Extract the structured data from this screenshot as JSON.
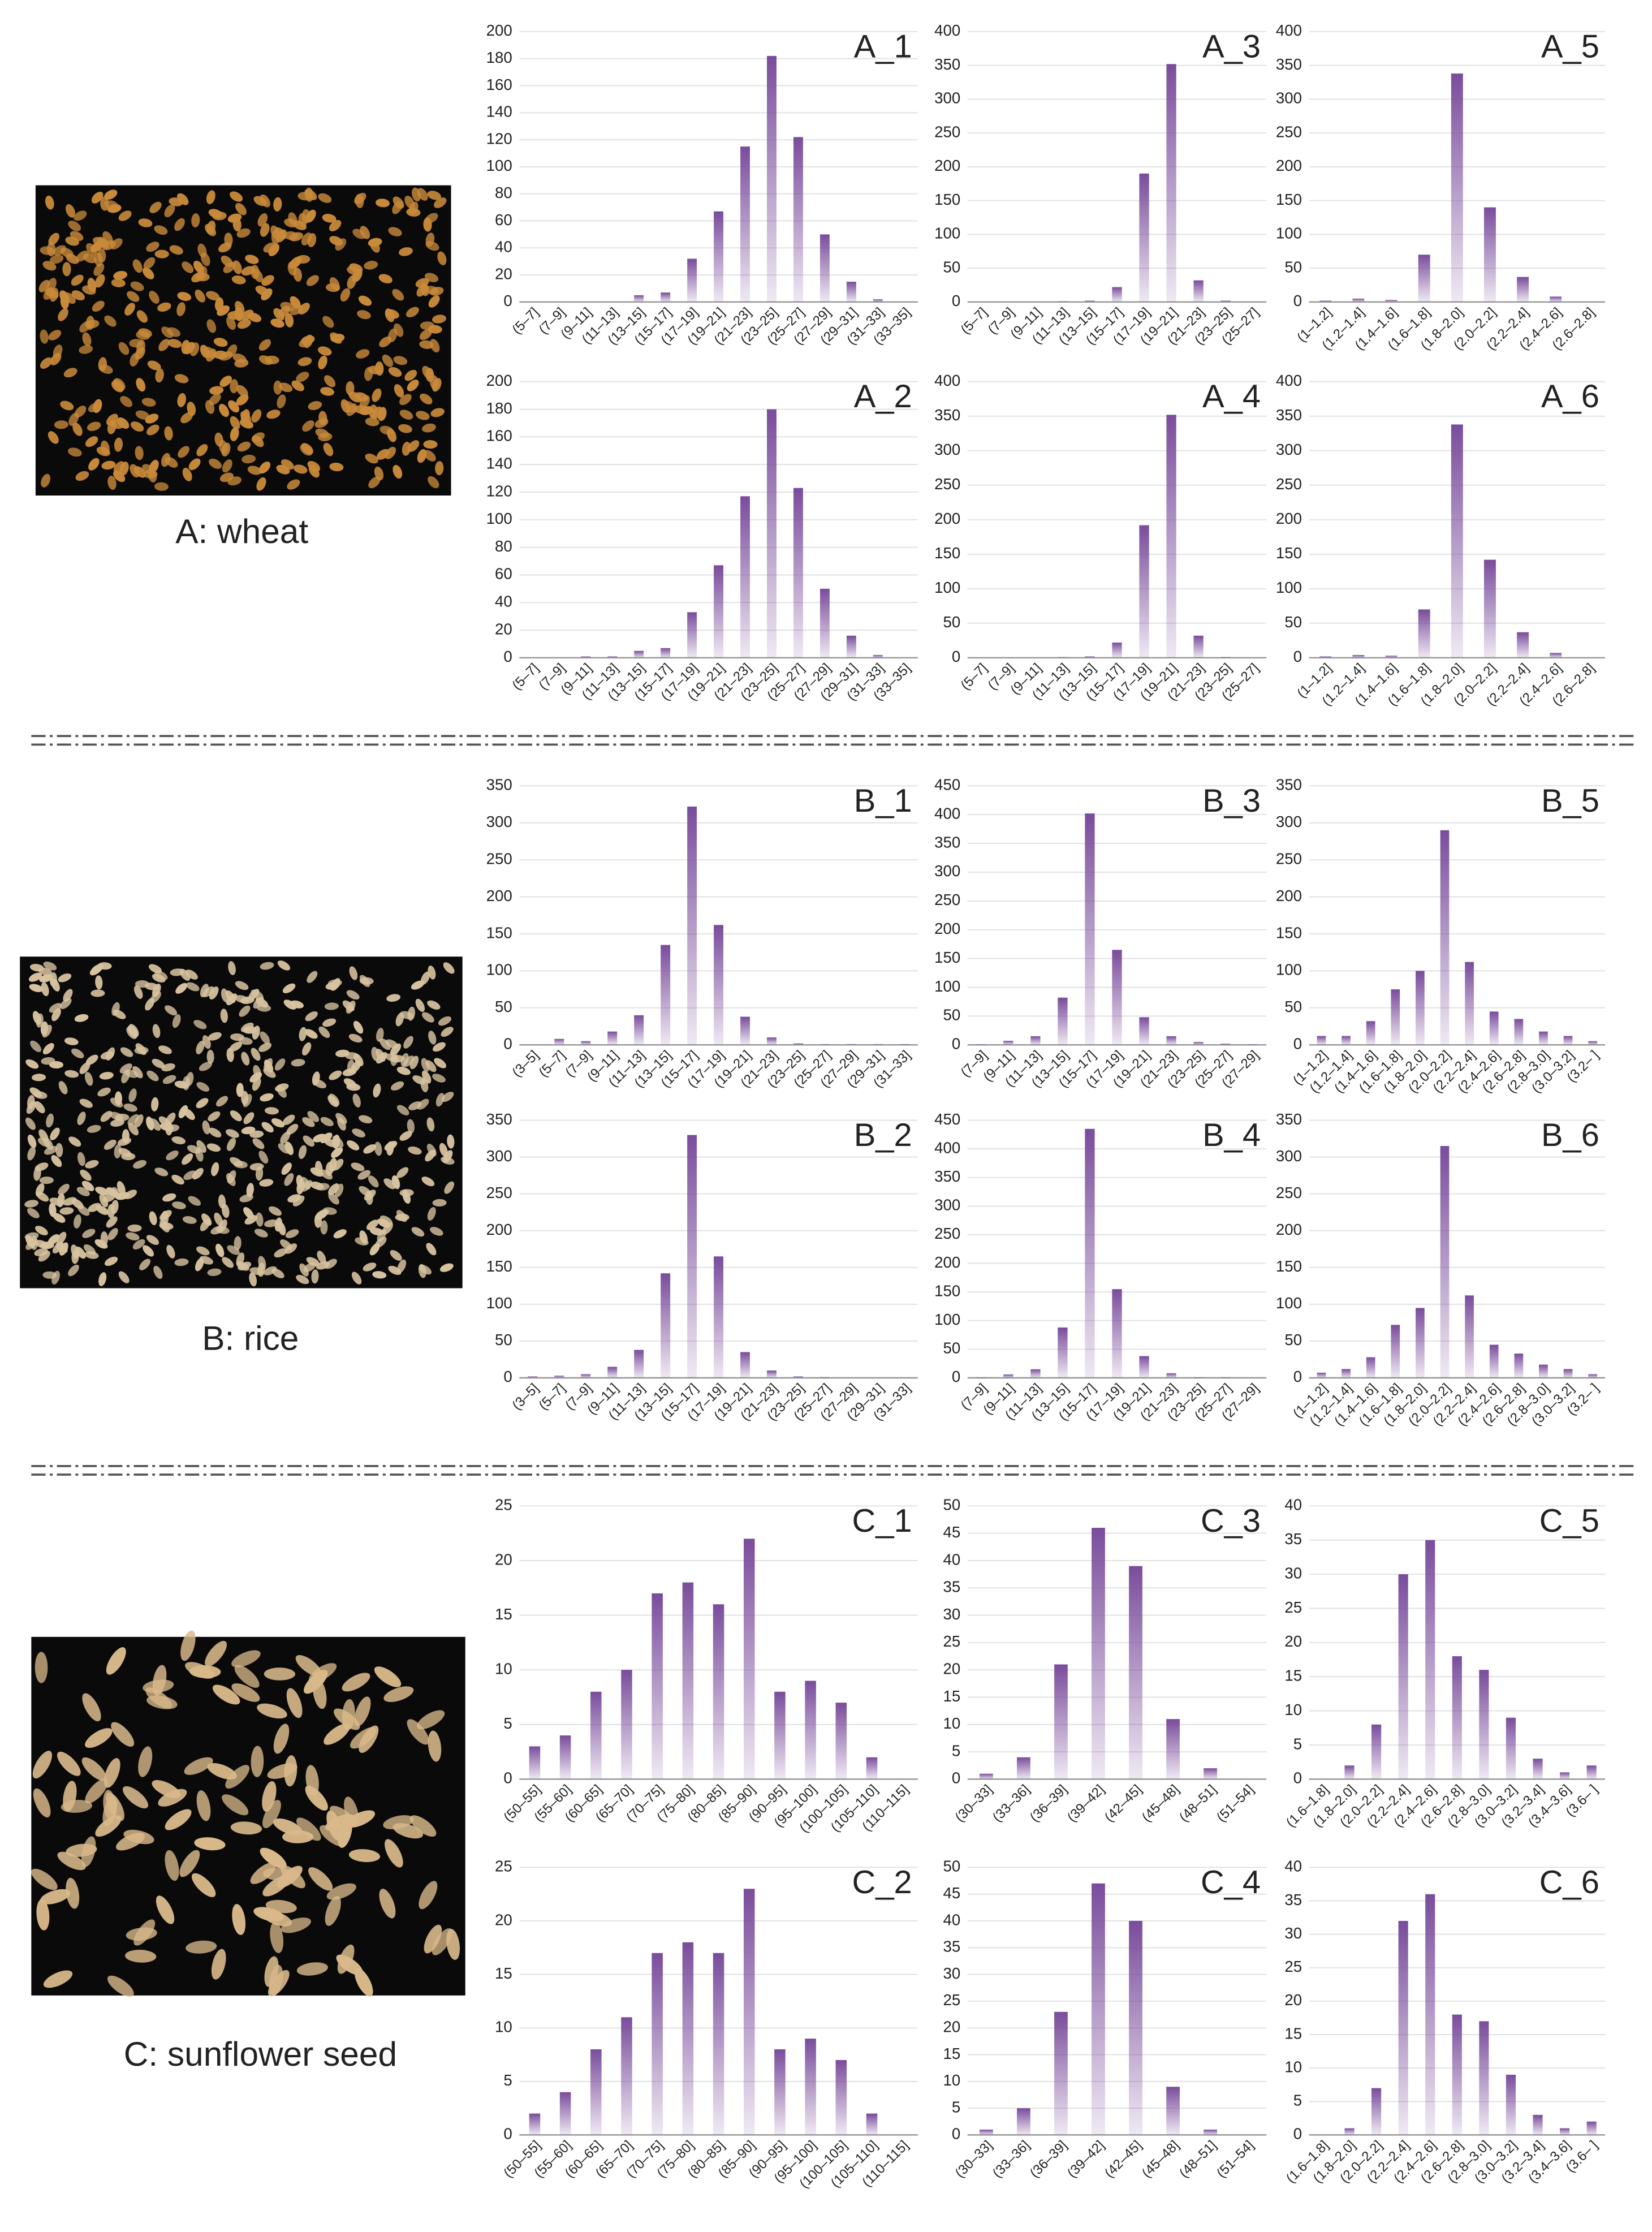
{
  "captions": [
    "A: wheat",
    "B: rice",
    "C: sunflower seed"
  ],
  "chart_data": [
    {
      "type": "bar",
      "title": "A_1",
      "color": "#7a4c9c",
      "grid": true,
      "categories": [
        "(5–7]",
        "(7–9]",
        "(9–11]",
        "(11–13]",
        "(13–15]",
        "(15–17]",
        "(17–19]",
        "(19–21]",
        "(21–23]",
        "(23–25]",
        "(25–27]",
        "(27–29]",
        "(29–31]",
        "(31–33]",
        "(33–35]"
      ],
      "values": [
        0,
        0,
        0,
        0,
        5,
        7,
        32,
        67,
        115,
        182,
        122,
        50,
        15,
        2,
        0
      ],
      "ylim": [
        0,
        200
      ],
      "yticks": [
        0,
        20,
        40,
        60,
        80,
        100,
        120,
        140,
        160,
        180,
        200
      ]
    },
    {
      "type": "bar",
      "title": "A_2",
      "color": "#7a4c9c",
      "grid": true,
      "categories": [
        "(5–7]",
        "(7–9]",
        "(9–11]",
        "(11–13]",
        "(13–15]",
        "(15–17]",
        "(17–19]",
        "(19–21]",
        "(21–23]",
        "(23–25]",
        "(25–27]",
        "(27–29]",
        "(29–31]",
        "(31–33]",
        "(33–35]"
      ],
      "values": [
        0,
        0,
        1,
        1,
        5,
        7,
        33,
        67,
        117,
        180,
        123,
        50,
        16,
        2,
        0
      ],
      "ylim": [
        0,
        200
      ],
      "yticks": [
        0,
        20,
        40,
        60,
        80,
        100,
        120,
        140,
        160,
        180,
        200
      ]
    },
    {
      "type": "bar",
      "title": "A_3",
      "color": "#7a4c9c",
      "grid": true,
      "categories": [
        "(5–7]",
        "(7–9]",
        "(9–11]",
        "(11–13]",
        "(13–15]",
        "(15–17]",
        "(17–19]",
        "(19–21]",
        "(21–23]",
        "(23–25]",
        "(25–27]"
      ],
      "values": [
        0,
        0,
        0,
        1,
        2,
        22,
        190,
        352,
        32,
        2,
        0
      ],
      "ylim": [
        0,
        400
      ],
      "yticks": [
        0,
        50,
        100,
        150,
        200,
        250,
        300,
        350,
        400
      ]
    },
    {
      "type": "bar",
      "title": "A_4",
      "color": "#7a4c9c",
      "grid": true,
      "categories": [
        "(5–7]",
        "(7–9]",
        "(9–11]",
        "(11–13]",
        "(13–15]",
        "(15–17]",
        "(17–19]",
        "(19–21]",
        "(21–23]",
        "(23–25]",
        "(25–27]"
      ],
      "values": [
        0,
        0,
        0,
        1,
        2,
        22,
        192,
        352,
        32,
        1,
        0
      ],
      "ylim": [
        0,
        400
      ],
      "yticks": [
        0,
        50,
        100,
        150,
        200,
        250,
        300,
        350,
        400
      ]
    },
    {
      "type": "bar",
      "title": "A_5",
      "color": "#7a4c9c",
      "grid": true,
      "categories": [
        "(1–1.2]",
        "(1.2–1.4]",
        "(1.4–1.6]",
        "(1.6–1.8]",
        "(1.8–2.0]",
        "(2.0–2.2]",
        "(2.2–2.4]",
        "(2.4–2.6]",
        "(2.6–2.8]"
      ],
      "values": [
        2,
        5,
        3,
        70,
        338,
        140,
        37,
        8,
        0
      ],
      "ylim": [
        0,
        400
      ],
      "yticks": [
        0,
        50,
        100,
        150,
        200,
        250,
        300,
        350,
        400
      ]
    },
    {
      "type": "bar",
      "title": "A_6",
      "color": "#7a4c9c",
      "grid": true,
      "categories": [
        "(1–1.2]",
        "(1.2–1.4]",
        "(1.4–1.6]",
        "(1.6–1.8]",
        "(1.8–2.0]",
        "(2.0–2.2]",
        "(2.2–2.4]",
        "(2.4–2.6]",
        "(2.6–2.8]"
      ],
      "values": [
        2,
        4,
        3,
        70,
        338,
        142,
        37,
        7,
        0
      ],
      "ylim": [
        0,
        400
      ],
      "yticks": [
        0,
        50,
        100,
        150,
        200,
        250,
        300,
        350,
        400
      ]
    },
    {
      "type": "bar",
      "title": "B_1",
      "color": "#7a4c9c",
      "grid": true,
      "categories": [
        "(3–5]",
        "(5–7]",
        "(7–9]",
        "(9–11]",
        "(11–13]",
        "(13–15]",
        "(15–17]",
        "(17–19]",
        "(19–21]",
        "(21–23]",
        "(23–25]",
        "(25–27]",
        "(27–29]",
        "(29–31]",
        "(31–33]"
      ],
      "values": [
        0,
        8,
        5,
        18,
        40,
        135,
        322,
        162,
        38,
        10,
        2,
        1,
        1,
        1,
        1
      ],
      "ylim": [
        0,
        350
      ],
      "yticks": [
        0,
        50,
        100,
        150,
        200,
        250,
        300,
        350
      ]
    },
    {
      "type": "bar",
      "title": "B_2",
      "color": "#7a4c9c",
      "grid": true,
      "categories": [
        "(3–5]",
        "(5–7]",
        "(7–9]",
        "(9–11]",
        "(11–13]",
        "(13–15]",
        "(15–17]",
        "(17–19]",
        "(19–21]",
        "(21–23]",
        "(23–25]",
        "(25–27]",
        "(27–29]",
        "(29–31]",
        "(31–33]"
      ],
      "values": [
        2,
        3,
        5,
        15,
        38,
        142,
        330,
        165,
        35,
        10,
        2,
        1,
        0,
        0,
        0
      ],
      "ylim": [
        0,
        350
      ],
      "yticks": [
        0,
        50,
        100,
        150,
        200,
        250,
        300,
        350
      ]
    },
    {
      "type": "bar",
      "title": "B_3",
      "color": "#7a4c9c",
      "grid": true,
      "categories": [
        "(7–9]",
        "(9–11]",
        "(11–13]",
        "(13–15]",
        "(15–17]",
        "(17–19]",
        "(19–21]",
        "(21–23]",
        "(23–25]",
        "(25–27]",
        "(27–29]"
      ],
      "values": [
        1,
        7,
        15,
        82,
        402,
        165,
        48,
        15,
        5,
        2,
        1
      ],
      "ylim": [
        0,
        450
      ],
      "yticks": [
        0,
        50,
        100,
        150,
        200,
        250,
        300,
        350,
        400,
        450
      ]
    },
    {
      "type": "bar",
      "title": "B_4",
      "color": "#7a4c9c",
      "grid": true,
      "categories": [
        "(7–9]",
        "(9–11]",
        "(11–13]",
        "(13–15]",
        "(15–17]",
        "(17–19]",
        "(19–21]",
        "(21–23]",
        "(23–25]",
        "(25–27]",
        "(27–29]"
      ],
      "values": [
        1,
        6,
        15,
        88,
        435,
        155,
        38,
        8,
        1,
        1,
        0
      ],
      "ylim": [
        0,
        450
      ],
      "yticks": [
        0,
        50,
        100,
        150,
        200,
        250,
        300,
        350,
        400,
        450
      ]
    },
    {
      "type": "bar",
      "title": "B_5",
      "color": "#7a4c9c",
      "grid": true,
      "categories": [
        "(1–1.2]",
        "(1.2–1.4]",
        "(1.4–1.6]",
        "(1.6–1.8]",
        "(1.8–2.0]",
        "(2.0–2.2]",
        "(2.2–2.4]",
        "(2.4–2.6]",
        "(2.6–2.8]",
        "(2.8–3.0]",
        "(3.0–3.2]",
        "(3.2– ]"
      ],
      "values": [
        12,
        12,
        32,
        75,
        100,
        290,
        112,
        45,
        35,
        18,
        12,
        5
      ],
      "ylim": [
        0,
        350
      ],
      "yticks": [
        0,
        50,
        100,
        150,
        200,
        250,
        300,
        350
      ]
    },
    {
      "type": "bar",
      "title": "B_6",
      "color": "#7a4c9c",
      "grid": true,
      "categories": [
        "(1–1.2]",
        "(1.2–1.4]",
        "(1.4–1.6]",
        "(1.6–1.8]",
        "(1.8–2.0]",
        "(2.0–2.2]",
        "(2.2–2.4]",
        "(2.4–2.6]",
        "(2.6–2.8]",
        "(2.8–3.0]",
        "(3.0–3.2]",
        "(3.2– ]"
      ],
      "values": [
        7,
        12,
        28,
        72,
        95,
        315,
        112,
        45,
        33,
        18,
        12,
        5
      ],
      "ylim": [
        0,
        350
      ],
      "yticks": [
        0,
        50,
        100,
        150,
        200,
        250,
        300,
        350
      ]
    },
    {
      "type": "bar",
      "title": "C_1",
      "color": "#7a4c9c",
      "grid": true,
      "categories": [
        "(50–55]",
        "(55–60]",
        "(60–65]",
        "(65–70]",
        "(70–75]",
        "(75–80]",
        "(80–85]",
        "(85–90]",
        "(90–95]",
        "(95–100]",
        "(100–105]",
        "(105–110]",
        "(110–115]"
      ],
      "values": [
        3,
        4,
        8,
        10,
        17,
        18,
        16,
        22,
        8,
        9,
        7,
        2,
        0
      ],
      "ylim": [
        0,
        25
      ],
      "yticks": [
        0,
        5,
        10,
        15,
        20,
        25
      ]
    },
    {
      "type": "bar",
      "title": "C_2",
      "color": "#7a4c9c",
      "grid": true,
      "categories": [
        "(50–55]",
        "(55–60]",
        "(60–65]",
        "(65–70]",
        "(70–75]",
        "(75–80]",
        "(80–85]",
        "(85–90]",
        "(90–95]",
        "(95–100]",
        "(100–105]",
        "(105–110]",
        "(110–115]"
      ],
      "values": [
        2,
        4,
        8,
        11,
        17,
        18,
        17,
        23,
        8,
        9,
        7,
        2,
        0
      ],
      "ylim": [
        0,
        25
      ],
      "yticks": [
        0,
        5,
        10,
        15,
        20,
        25
      ]
    },
    {
      "type": "bar",
      "title": "C_3",
      "color": "#7a4c9c",
      "grid": true,
      "categories": [
        "(30–33]",
        "(33–36]",
        "(36–39]",
        "(39–42]",
        "(42–45]",
        "(45–48]",
        "(48–51]",
        "(51–54]"
      ],
      "values": [
        1,
        4,
        21,
        46,
        39,
        11,
        2,
        0
      ],
      "ylim": [
        0,
        50
      ],
      "yticks": [
        0,
        5,
        10,
        15,
        20,
        25,
        30,
        35,
        40,
        45,
        50
      ]
    },
    {
      "type": "bar",
      "title": "C_4",
      "color": "#7a4c9c",
      "grid": true,
      "categories": [
        "(30–33]",
        "(33–36]",
        "(36–39]",
        "(39–42]",
        "(42–45]",
        "(45–48]",
        "(48–51]",
        "(51–54]"
      ],
      "values": [
        1,
        5,
        23,
        47,
        40,
        9,
        1,
        0
      ],
      "ylim": [
        0,
        50
      ],
      "yticks": [
        0,
        5,
        10,
        15,
        20,
        25,
        30,
        35,
        40,
        45,
        50
      ]
    },
    {
      "type": "bar",
      "title": "C_5",
      "color": "#7a4c9c",
      "grid": true,
      "categories": [
        "(1.6–1.8]",
        "(1.8–2.0]",
        "(2.0–2.2]",
        "(2.2–2.4]",
        "(2.4–2.6]",
        "(2.6–2.8]",
        "(2.8–3.0]",
        "(3.0–3.2]",
        "(3.2–3.4]",
        "(3.4–3.6]",
        "(3.6– ]"
      ],
      "values": [
        0,
        2,
        8,
        30,
        35,
        18,
        16,
        9,
        3,
        1,
        2
      ],
      "ylim": [
        0,
        40
      ],
      "yticks": [
        0,
        5,
        10,
        15,
        20,
        25,
        30,
        35,
        40
      ]
    },
    {
      "type": "bar",
      "title": "C_6",
      "color": "#7a4c9c",
      "grid": true,
      "categories": [
        "(1.6–1.8]",
        "(1.8–2.0]",
        "(2.0–2.2]",
        "(2.2–2.4]",
        "(2.4–2.6]",
        "(2.6–2.8]",
        "(2.8–3.0]",
        "(3.0–3.2]",
        "(3.2–3.4]",
        "(3.4–3.6]",
        "(3.6– ]"
      ],
      "values": [
        0,
        1,
        7,
        32,
        36,
        18,
        17,
        9,
        3,
        1,
        2
      ],
      "ylim": [
        0,
        40
      ],
      "yticks": [
        0,
        5,
        10,
        15,
        20,
        25,
        30,
        35,
        40
      ]
    }
  ]
}
